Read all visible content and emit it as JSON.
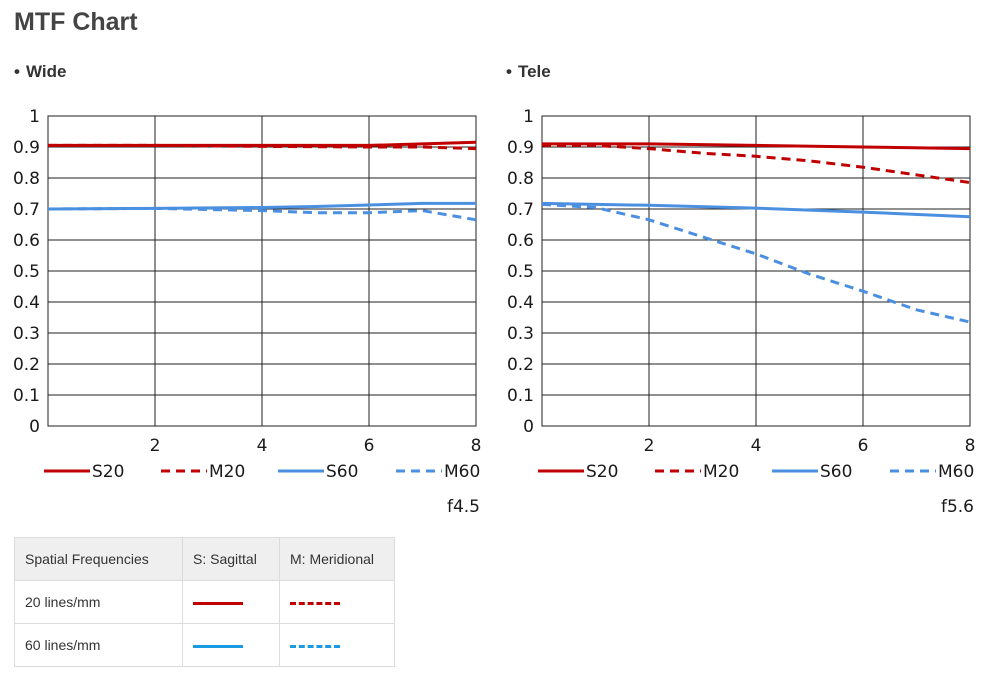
{
  "page": {
    "title": "MTF Chart"
  },
  "sections": {
    "wide": {
      "bullet": "•",
      "title": "Wide"
    },
    "tele": {
      "bullet": "•",
      "title": "Tele"
    }
  },
  "colors": {
    "s20": "#c00000",
    "m20": "#c00000",
    "s60": "#4a8fe0",
    "m60": "#4a8fe0",
    "table_blue": "#1a9ae0"
  },
  "chart_data": [
    {
      "type": "line",
      "title": "Wide",
      "x_ticks": [
        2,
        4,
        6,
        8
      ],
      "y_ticks": [
        "0",
        "0.1",
        "0.2",
        "0.3",
        "0.4",
        "0.5",
        "0.6",
        "0.7",
        "0.8",
        "0.9",
        "1"
      ],
      "xlim": [
        0,
        8
      ],
      "ylim": [
        0,
        1
      ],
      "grid": true,
      "aperture": "f4.5",
      "legend": [
        "S20",
        "M20",
        "S60",
        "M60"
      ],
      "series": [
        {
          "name": "S20",
          "style": "solid",
          "color": "#c00000",
          "x": [
            0,
            2,
            4,
            6,
            7,
            8
          ],
          "y": [
            0.905,
            0.905,
            0.905,
            0.905,
            0.91,
            0.915
          ]
        },
        {
          "name": "M20",
          "style": "dashed",
          "color": "#c00000",
          "x": [
            0,
            2,
            4,
            6,
            7,
            8
          ],
          "y": [
            0.905,
            0.905,
            0.902,
            0.9,
            0.9,
            0.895
          ]
        },
        {
          "name": "S60",
          "style": "solid",
          "color": "#4a8fe0",
          "x": [
            0,
            2,
            4,
            5,
            6,
            7,
            8
          ],
          "y": [
            0.7,
            0.702,
            0.705,
            0.708,
            0.713,
            0.718,
            0.718
          ]
        },
        {
          "name": "M60",
          "style": "dashed",
          "color": "#4a8fe0",
          "x": [
            0,
            2,
            4,
            5,
            6,
            7,
            8
          ],
          "y": [
            0.7,
            0.702,
            0.695,
            0.688,
            0.688,
            0.695,
            0.665
          ]
        }
      ]
    },
    {
      "type": "line",
      "title": "Tele",
      "x_ticks": [
        2,
        4,
        6,
        8
      ],
      "y_ticks": [
        "0",
        "0.1",
        "0.2",
        "0.3",
        "0.4",
        "0.5",
        "0.6",
        "0.7",
        "0.8",
        "0.9",
        "1"
      ],
      "xlim": [
        0,
        8
      ],
      "ylim": [
        0,
        1
      ],
      "grid": true,
      "aperture": "f5.6",
      "legend": [
        "S20",
        "M20",
        "S60",
        "M60"
      ],
      "series": [
        {
          "name": "S20",
          "style": "solid",
          "color": "#c00000",
          "x": [
            0,
            2,
            4,
            6,
            8
          ],
          "y": [
            0.91,
            0.91,
            0.905,
            0.9,
            0.895
          ]
        },
        {
          "name": "M20",
          "style": "dashed",
          "color": "#c00000",
          "x": [
            0,
            1,
            2,
            3,
            4,
            5,
            6,
            7,
            8
          ],
          "y": [
            0.905,
            0.905,
            0.895,
            0.88,
            0.87,
            0.855,
            0.835,
            0.81,
            0.785
          ]
        },
        {
          "name": "S60",
          "style": "solid",
          "color": "#4a8fe0",
          "x": [
            0,
            2,
            4,
            6,
            8
          ],
          "y": [
            0.718,
            0.712,
            0.703,
            0.69,
            0.675
          ]
        },
        {
          "name": "M60",
          "style": "dashed",
          "color": "#4a8fe0",
          "x": [
            0,
            1,
            2,
            3,
            4,
            5,
            6,
            7,
            8
          ],
          "y": [
            0.715,
            0.705,
            0.665,
            0.61,
            0.555,
            0.49,
            0.435,
            0.375,
            0.335
          ]
        }
      ]
    }
  ],
  "table": {
    "headers": [
      "Spatial Frequencies",
      "S: Sagittal",
      "M: Meridional"
    ],
    "rows": [
      {
        "label": "20 lines/mm",
        "s_color": "#c00000",
        "m_color": "#c00000"
      },
      {
        "label": "60 lines/mm",
        "s_color": "#1a9ae0",
        "m_color": "#1a9ae0"
      }
    ]
  }
}
